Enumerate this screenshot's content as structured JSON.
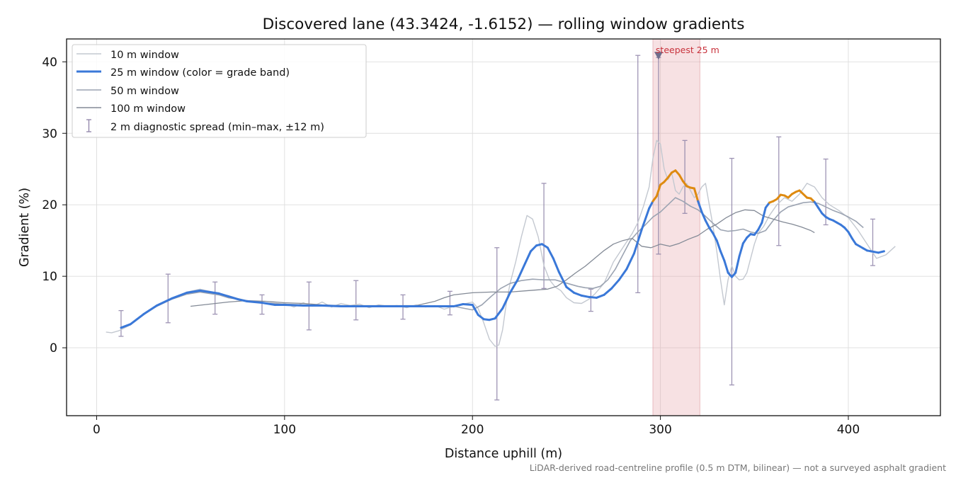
{
  "chart_data": {
    "type": "line",
    "title": "Discovered lane (43.3424, -1.6152) — rolling window gradients",
    "xlabel": "Distance uphill (m)",
    "ylabel": "Gradient (%)",
    "xlim": [
      -16,
      449
    ],
    "ylim": [
      -9.5,
      43.2
    ],
    "xticks": [
      0,
      100,
      200,
      300,
      400
    ],
    "yticks": [
      0,
      10,
      20,
      30,
      40
    ],
    "grid": true,
    "legend_position": "top-left",
    "footnote": "LiDAR-derived road-centreline profile (0.5 m DTM, bilinear) — not a surveyed asphalt gradient",
    "steepest": {
      "label": "steepest 25 m",
      "x_start": 296,
      "x_end": 321,
      "marker_x": 299,
      "marker_y": 40.8
    },
    "grade_band_colors": {
      "below_20": "#3a78d8",
      "20_to_25": "#de8a10"
    },
    "series": [
      {
        "name": "10 m window",
        "color": "#c3c8d0",
        "x": [
          5,
          8,
          12,
          18,
          25,
          32,
          40,
          48,
          55,
          60,
          65,
          70,
          75,
          80,
          88,
          95,
          100,
          105,
          110,
          115,
          120,
          125,
          130,
          135,
          140,
          145,
          150,
          155,
          160,
          165,
          170,
          175,
          180,
          185,
          190,
          195,
          200,
          203,
          206,
          209,
          212,
          214,
          216,
          218,
          220,
          223,
          226,
          229,
          232,
          235,
          238,
          241,
          244,
          247,
          250,
          254,
          258,
          262,
          265,
          270,
          275,
          280,
          285,
          288,
          291,
          294,
          296,
          298,
          300,
          302,
          304,
          306,
          308,
          310,
          312,
          314,
          316,
          318,
          320,
          322,
          324,
          326,
          328,
          330,
          332,
          334,
          336,
          338,
          340,
          342,
          344,
          346,
          348,
          350,
          352,
          355,
          358,
          362,
          366,
          370,
          374,
          378,
          382,
          386,
          390,
          395,
          400,
          405,
          410,
          415,
          420,
          425
        ],
        "y": [
          2.2,
          2.1,
          2.4,
          3.2,
          4.6,
          5.8,
          6.8,
          7.8,
          8.2,
          7.9,
          7.6,
          7.3,
          6.9,
          6.6,
          6.3,
          5.9,
          6.2,
          5.7,
          6.3,
          5.8,
          6.4,
          5.7,
          6.2,
          5.9,
          6.1,
          5.6,
          6.0,
          5.8,
          5.9,
          5.6,
          6.0,
          5.7,
          5.9,
          5.4,
          5.8,
          6.1,
          6.4,
          5.5,
          3.5,
          1.2,
          0.2,
          0.4,
          2.5,
          6.2,
          9.0,
          12.0,
          15.5,
          18.5,
          18.0,
          15.5,
          11.5,
          9.5,
          8.5,
          8.0,
          7.0,
          6.3,
          6.2,
          6.8,
          7.5,
          9.0,
          12.0,
          14.0,
          16.0,
          17.5,
          19.8,
          22.5,
          26.5,
          29.0,
          28.5,
          25.0,
          23.5,
          24.5,
          22.0,
          21.5,
          22.5,
          23.0,
          22.0,
          21.0,
          21.5,
          22.5,
          23.0,
          20.0,
          17.0,
          13.5,
          9.5,
          6.0,
          9.5,
          11.5,
          10.0,
          9.5,
          9.6,
          10.5,
          12.5,
          14.5,
          16.0,
          17.0,
          18.5,
          20.0,
          21.0,
          20.5,
          21.5,
          23.0,
          22.5,
          21.0,
          20.0,
          19.2,
          18.2,
          16.5,
          14.5,
          12.5,
          13.0,
          14.2
        ]
      },
      {
        "name": "25 m window (color = grade band)",
        "color": "#3a78d8",
        "x": [
          13,
          18,
          25,
          32,
          40,
          48,
          55,
          60,
          65,
          70,
          75,
          80,
          88,
          95,
          100,
          110,
          120,
          130,
          140,
          150,
          160,
          170,
          180,
          190,
          195,
          200,
          203,
          206,
          209,
          212,
          216,
          220,
          224,
          228,
          231,
          234,
          237,
          240,
          243,
          246,
          250,
          254,
          258,
          262,
          266,
          270,
          274,
          278,
          282,
          286,
          290,
          294,
          296,
          298,
          300,
          302,
          304,
          306,
          308,
          310,
          312,
          314,
          316,
          318,
          320,
          322,
          324,
          326,
          328,
          330,
          332,
          334,
          336,
          338,
          340,
          342,
          344,
          346,
          348,
          350,
          352,
          354,
          356,
          358,
          360,
          362,
          364,
          366,
          368,
          370,
          372,
          374,
          376,
          378,
          380,
          382,
          384,
          386,
          388,
          390,
          392,
          394,
          396,
          398,
          400,
          402,
          404,
          406,
          408,
          410,
          412,
          414,
          416,
          419
        ],
        "y": [
          2.8,
          3.3,
          4.7,
          5.9,
          6.9,
          7.7,
          8.0,
          7.8,
          7.6,
          7.2,
          6.8,
          6.5,
          6.3,
          6.0,
          6.0,
          5.9,
          5.9,
          5.8,
          5.8,
          5.8,
          5.8,
          5.8,
          5.8,
          5.8,
          6.1,
          6.0,
          4.6,
          4.0,
          3.9,
          4.1,
          5.5,
          7.7,
          9.5,
          11.8,
          13.5,
          14.3,
          14.5,
          14.0,
          12.5,
          10.6,
          8.5,
          7.7,
          7.3,
          7.1,
          7.0,
          7.4,
          8.3,
          9.5,
          11.0,
          13.2,
          16.5,
          19.5,
          20.5,
          21.2,
          22.8,
          23.2,
          23.8,
          24.5,
          24.8,
          24.2,
          23.3,
          22.6,
          22.4,
          22.3,
          20.5,
          19.0,
          17.8,
          16.8,
          16.0,
          15.0,
          13.5,
          12.2,
          10.5,
          9.9,
          10.5,
          12.8,
          14.6,
          15.4,
          15.9,
          15.8,
          16.5,
          17.5,
          19.6,
          20.3,
          20.5,
          20.8,
          21.4,
          21.3,
          21.0,
          21.5,
          21.8,
          22.0,
          21.5,
          21.0,
          20.9,
          20.4,
          19.6,
          18.8,
          18.3,
          18.0,
          17.8,
          17.5,
          17.2,
          16.8,
          16.2,
          15.3,
          14.5,
          14.2,
          13.9,
          13.6,
          13.5,
          13.4,
          13.3,
          13.5
        ]
      },
      {
        "name": "50 m window",
        "color": "#9ca4b2",
        "x": [
          25,
          32,
          40,
          48,
          55,
          60,
          65,
          70,
          75,
          80,
          88,
          95,
          100,
          110,
          120,
          130,
          140,
          150,
          160,
          170,
          180,
          190,
          196,
          200,
          205,
          210,
          215,
          220,
          226,
          232,
          238,
          244,
          248,
          252,
          256,
          260,
          264,
          268,
          272,
          276,
          280,
          284,
          288,
          292,
          296,
          300,
          304,
          308,
          312,
          316,
          320,
          324,
          328,
          332,
          336,
          340,
          344,
          348,
          352,
          356,
          360,
          364,
          368,
          372,
          376,
          380,
          384,
          388,
          392,
          396,
          400,
          404,
          408
        ],
        "y": [
          4.7,
          5.8,
          6.8,
          7.5,
          7.8,
          7.6,
          7.4,
          7.0,
          6.8,
          6.6,
          6.3,
          6.2,
          6.1,
          6.0,
          5.9,
          5.9,
          5.8,
          5.8,
          5.8,
          5.8,
          5.8,
          5.8,
          5.5,
          5.3,
          6.0,
          7.2,
          8.3,
          9.0,
          9.4,
          9.6,
          9.5,
          9.5,
          9.2,
          8.9,
          8.6,
          8.4,
          8.3,
          8.6,
          9.5,
          11.0,
          13.0,
          15.0,
          16.2,
          17.2,
          18.3,
          19.0,
          20.0,
          21.0,
          20.5,
          19.8,
          19.3,
          18.4,
          17.4,
          16.5,
          16.3,
          16.4,
          16.6,
          16.2,
          16.0,
          16.4,
          17.8,
          19.0,
          19.7,
          20.0,
          20.3,
          20.4,
          20.2,
          19.7,
          19.2,
          18.8,
          18.3,
          17.7,
          16.8
        ]
      },
      {
        "name": "100 m window",
        "color": "#838a96",
        "x": [
          50,
          60,
          70,
          80,
          90,
          100,
          110,
          120,
          130,
          140,
          150,
          160,
          170,
          180,
          185,
          190,
          200,
          210,
          220,
          230,
          240,
          245,
          250,
          255,
          260,
          265,
          270,
          275,
          280,
          285,
          290,
          295,
          300,
          305,
          310,
          315,
          320,
          325,
          330,
          335,
          340,
          345,
          350,
          355,
          360,
          365,
          370,
          375,
          380,
          382
        ],
        "y": [
          5.8,
          6.1,
          6.4,
          6.6,
          6.5,
          6.3,
          6.2,
          6.0,
          5.9,
          5.9,
          5.9,
          5.9,
          5.9,
          6.5,
          7.0,
          7.4,
          7.7,
          7.8,
          7.8,
          8.0,
          8.2,
          8.6,
          9.5,
          10.5,
          11.4,
          12.5,
          13.6,
          14.5,
          15.0,
          15.3,
          14.2,
          14.0,
          14.5,
          14.2,
          14.6,
          15.2,
          15.7,
          16.6,
          17.3,
          18.2,
          18.9,
          19.3,
          19.2,
          18.4,
          18.0,
          17.6,
          17.3,
          16.9,
          16.4,
          16.1
        ]
      }
    ],
    "diagnostic_spread": {
      "name": "2 m diagnostic spread (min–max, ±12 m)",
      "color": "#8e82a8",
      "points": [
        {
          "x": 13,
          "min": 1.6,
          "max": 5.2
        },
        {
          "x": 38,
          "min": 3.5,
          "max": 10.3
        },
        {
          "x": 63,
          "min": 4.7,
          "max": 9.2
        },
        {
          "x": 88,
          "min": 4.7,
          "max": 7.4
        },
        {
          "x": 113,
          "min": 2.5,
          "max": 9.2
        },
        {
          "x": 138,
          "min": 3.9,
          "max": 9.4
        },
        {
          "x": 163,
          "min": 4.0,
          "max": 7.4
        },
        {
          "x": 188,
          "min": 4.6,
          "max": 7.9
        },
        {
          "x": 213,
          "min": -7.3,
          "max": 14.0
        },
        {
          "x": 238,
          "min": 8.3,
          "max": 23.0
        },
        {
          "x": 263,
          "min": 5.1,
          "max": 8.2
        },
        {
          "x": 288,
          "min": 7.7,
          "max": 40.9
        },
        {
          "x": 299,
          "min": 13.1,
          "max": 40.6
        },
        {
          "x": 313,
          "min": 18.8,
          "max": 29.0
        },
        {
          "x": 338,
          "min": -5.2,
          "max": 26.5
        },
        {
          "x": 363,
          "min": 14.3,
          "max": 29.5
        },
        {
          "x": 388,
          "min": 17.2,
          "max": 26.4
        },
        {
          "x": 413,
          "min": 11.5,
          "max": 18.0
        }
      ]
    }
  }
}
